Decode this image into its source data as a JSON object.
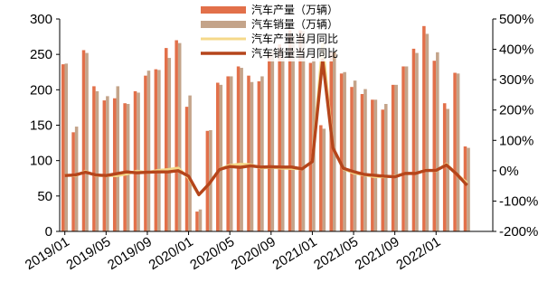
{
  "chart_data": {
    "type": "bar",
    "x": [
      "2019/01",
      "2019/02",
      "2019/03",
      "2019/04",
      "2019/05",
      "2019/06",
      "2019/07",
      "2019/08",
      "2019/09",
      "2019/10",
      "2019/11",
      "2019/12",
      "2020/01",
      "2020/02",
      "2020/03",
      "2020/04",
      "2020/05",
      "2020/06",
      "2020/07",
      "2020/08",
      "2020/09",
      "2020/10",
      "2020/11",
      "2020/12",
      "2021/01",
      "2021/02",
      "2021/03",
      "2021/04",
      "2021/05",
      "2021/06",
      "2021/07",
      "2021/08",
      "2021/09",
      "2021/10",
      "2021/11",
      "2021/12",
      "2022/01",
      "2022/02",
      "2022/03",
      "2022/04",
      "2022/05",
      "2022/06"
    ],
    "x_tick_labels": [
      "2019/01",
      "2019/05",
      "2019/09",
      "2020/01",
      "2020/05",
      "2020/09",
      "2021/01",
      "2021/05",
      "2021/09",
      "2022/01"
    ],
    "series": [
      {
        "name": "汽车产量（万辆）",
        "kind": "bar",
        "axis": "left",
        "color": "#E2704A",
        "values": [
          236,
          140,
          256,
          205,
          185,
          188,
          181,
          198,
          220,
          229,
          259,
          270,
          176,
          28,
          142,
          210,
          219,
          233,
          220,
          212,
          252,
          264,
          284,
          284,
          238,
          150,
          253,
          223,
          204,
          194,
          186,
          172,
          207,
          233,
          258,
          290,
          241,
          181,
          224,
          120,
          0,
          0
        ]
      },
      {
        "name": "汽车销量（万辆）",
        "kind": "bar",
        "axis": "left",
        "color": "#C4A48A",
        "values": [
          237,
          148,
          252,
          198,
          191,
          205,
          180,
          196,
          227,
          228,
          245,
          266,
          192,
          31,
          143,
          207,
          219,
          231,
          211,
          219,
          257,
          257,
          277,
          283,
          251,
          145,
          253,
          225,
          213,
          201,
          186,
          180,
          207,
          233,
          252,
          279,
          253,
          173,
          223,
          118,
          0,
          0
        ]
      },
      {
        "name": "汽车产量当月同比",
        "kind": "line",
        "axis": "right",
        "color": "#F5D98A",
        "values": [
          -14,
          -17,
          -2,
          -16,
          -16,
          -17,
          -11,
          -1,
          -6,
          1,
          4,
          9,
          -24,
          -80,
          -44,
          5,
          18,
          22,
          20,
          9,
          11,
          8,
          7,
          6,
          31,
          420,
          75,
          6,
          -8,
          -14,
          -20,
          -20,
          -18,
          -9,
          -9,
          2,
          -1,
          22,
          -11,
          -40,
          0,
          0
        ]
      },
      {
        "name": "汽车销量当月同比",
        "kind": "line",
        "axis": "right",
        "color": "#B5451B",
        "values": [
          -16,
          -14,
          -5,
          -14,
          -16,
          -10,
          -4,
          -7,
          -5,
          -4,
          -4,
          0,
          -18,
          -79,
          -43,
          4,
          14,
          11,
          16,
          12,
          13,
          12,
          12,
          6,
          30,
          365,
          75,
          8,
          -3,
          -12,
          -15,
          -18,
          -20,
          -9,
          -9,
          1,
          1,
          19,
          -11,
          -48,
          0,
          0
        ]
      }
    ],
    "title": "",
    "xlabel": "",
    "ylabel": "",
    "ylim": [
      0,
      300
    ],
    "y_ticks": [
      0,
      50,
      100,
      150,
      200,
      250,
      300
    ],
    "y2lim": [
      -200,
      500
    ],
    "y2_ticks": [
      "-200%",
      "-100%",
      "0%",
      "100%",
      "200%",
      "300%",
      "400%",
      "500%"
    ],
    "grid": false,
    "legend_position": "top-center"
  }
}
